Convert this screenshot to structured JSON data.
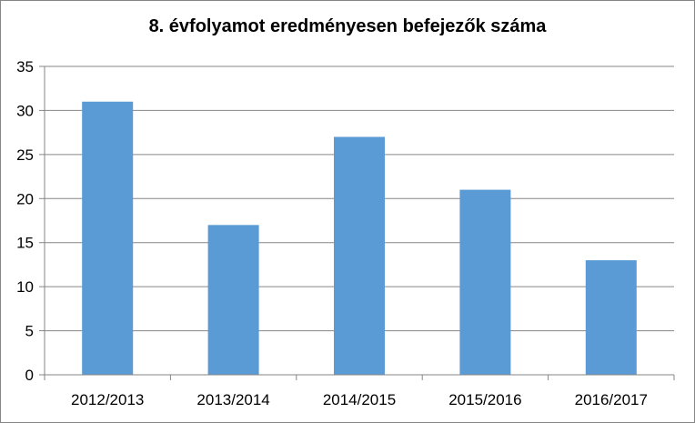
{
  "chart_data": {
    "type": "bar",
    "title": "8. évfolyamot eredményesen befejezők száma",
    "categories": [
      "2012/2013",
      "2013/2014",
      "2014/2015",
      "2015/2016",
      "2016/2017"
    ],
    "values": [
      31,
      17,
      27,
      21,
      13
    ],
    "xlabel": "",
    "ylabel": "",
    "ylim": [
      0,
      35
    ],
    "y_ticks": [
      0,
      5,
      10,
      15,
      20,
      25,
      30,
      35
    ],
    "grid": true,
    "legend": "none",
    "colors": {
      "bar": "#5B9BD5",
      "grid": "#868686",
      "axis": "#868686"
    }
  }
}
